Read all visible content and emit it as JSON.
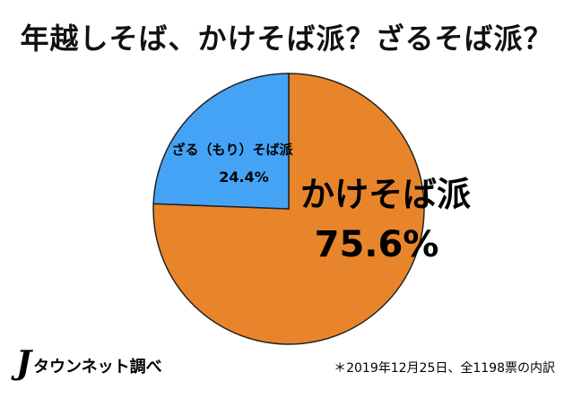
{
  "chart_data": {
    "type": "pie",
    "title": "年越しそば、かけそば派？ざるそば派？",
    "slices": [
      {
        "name": "かけそば派",
        "value": 75.6,
        "label": "75.6%",
        "color": "#E8852B"
      },
      {
        "name": "ざる（もり）そば派",
        "value": 24.4,
        "label": "24.4%",
        "color": "#44A3F4"
      }
    ]
  },
  "logo": {
    "j": "J",
    "text": "タウンネット調べ"
  },
  "footnote": "＊2019年12月25日、全1198票の内訳"
}
